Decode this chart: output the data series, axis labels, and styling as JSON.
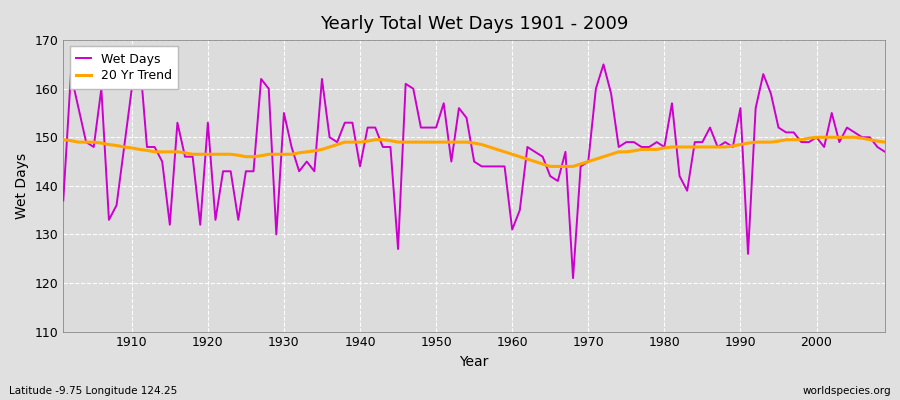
{
  "title": "Yearly Total Wet Days 1901 - 2009",
  "xlabel": "Year",
  "ylabel": "Wet Days",
  "subtitle": "Latitude -9.75 Longitude 124.25",
  "watermark": "worldspecies.org",
  "ylim": [
    110,
    170
  ],
  "yticks": [
    110,
    120,
    130,
    140,
    150,
    160,
    170
  ],
  "xlim": [
    1901,
    2009
  ],
  "wet_days_color": "#CC00CC",
  "trend_color": "#FFA500",
  "background_color": "#E0E0E0",
  "plot_bg_color": "#DCDCDC",
  "grid_color": "#FFFFFF",
  "wet_days": [
    137,
    163,
    156,
    149,
    148,
    160,
    133,
    136,
    148,
    160,
    167,
    148,
    148,
    145,
    132,
    153,
    146,
    146,
    132,
    153,
    133,
    143,
    143,
    133,
    143,
    143,
    162,
    160,
    130,
    155,
    148,
    143,
    145,
    143,
    162,
    150,
    149,
    153,
    153,
    144,
    152,
    152,
    148,
    148,
    127,
    161,
    160,
    152,
    152,
    152,
    157,
    145,
    156,
    154,
    145,
    144,
    144,
    144,
    144,
    131,
    135,
    148,
    147,
    146,
    142,
    141,
    147,
    121,
    144,
    145,
    160,
    165,
    159,
    148,
    149,
    149,
    148,
    148,
    149,
    148,
    157,
    142,
    139,
    149,
    149,
    152,
    148,
    149,
    148,
    156,
    126,
    156,
    163,
    159,
    152,
    151,
    151,
    149,
    149,
    150,
    148,
    155,
    149,
    152,
    151,
    150,
    150,
    148,
    147
  ],
  "trend_points": {
    "1901": 149.5,
    "1902": 149.3,
    "1903": 149.0,
    "1904": 149.0,
    "1905": 149.0,
    "1906": 148.8,
    "1907": 148.5,
    "1908": 148.3,
    "1909": 148.0,
    "1910": 147.8,
    "1911": 147.5,
    "1912": 147.3,
    "1913": 147.0,
    "1914": 147.0,
    "1915": 147.0,
    "1916": 147.0,
    "1917": 146.8,
    "1918": 146.5,
    "1919": 146.5,
    "1920": 146.5,
    "1921": 146.5,
    "1922": 146.5,
    "1923": 146.5,
    "1924": 146.3,
    "1925": 146.0,
    "1926": 146.0,
    "1927": 146.2,
    "1928": 146.5,
    "1929": 146.5,
    "1930": 146.5,
    "1931": 146.5,
    "1932": 146.8,
    "1933": 147.0,
    "1934": 147.2,
    "1935": 147.5,
    "1936": 148.0,
    "1937": 148.5,
    "1938": 149.0,
    "1939": 149.0,
    "1940": 149.0,
    "1941": 149.2,
    "1942": 149.5,
    "1943": 149.5,
    "1944": 149.3,
    "1945": 149.0,
    "1946": 149.0,
    "1947": 149.0,
    "1948": 149.0,
    "1949": 149.0,
    "1950": 149.0,
    "1951": 149.0,
    "1952": 149.0,
    "1953": 149.0,
    "1954": 149.0,
    "1955": 148.8,
    "1956": 148.5,
    "1957": 148.0,
    "1958": 147.5,
    "1959": 147.0,
    "1960": 146.5,
    "1961": 146.0,
    "1962": 145.5,
    "1963": 145.0,
    "1964": 144.5,
    "1965": 144.0,
    "1966": 144.0,
    "1967": 144.0,
    "1968": 144.0,
    "1969": 144.5,
    "1970": 145.0,
    "1971": 145.5,
    "1972": 146.0,
    "1973": 146.5,
    "1974": 147.0,
    "1975": 147.0,
    "1976": 147.2,
    "1977": 147.5,
    "1978": 147.5,
    "1979": 147.5,
    "1980": 147.8,
    "1981": 148.0,
    "1982": 148.0,
    "1983": 148.0,
    "1984": 148.0,
    "1985": 148.0,
    "1986": 148.0,
    "1987": 148.0,
    "1988": 148.0,
    "1989": 148.2,
    "1990": 148.5,
    "1991": 148.8,
    "1992": 149.0,
    "1993": 149.0,
    "1994": 149.0,
    "1995": 149.2,
    "1996": 149.5,
    "1997": 149.5,
    "1998": 149.5,
    "1999": 149.8,
    "2000": 150.0,
    "2001": 150.0,
    "2002": 150.0,
    "2003": 150.0,
    "2004": 150.0,
    "2005": 150.0,
    "2006": 149.8,
    "2007": 149.5,
    "2008": 149.2,
    "2009": 149.0
  },
  "start_year": 1901
}
